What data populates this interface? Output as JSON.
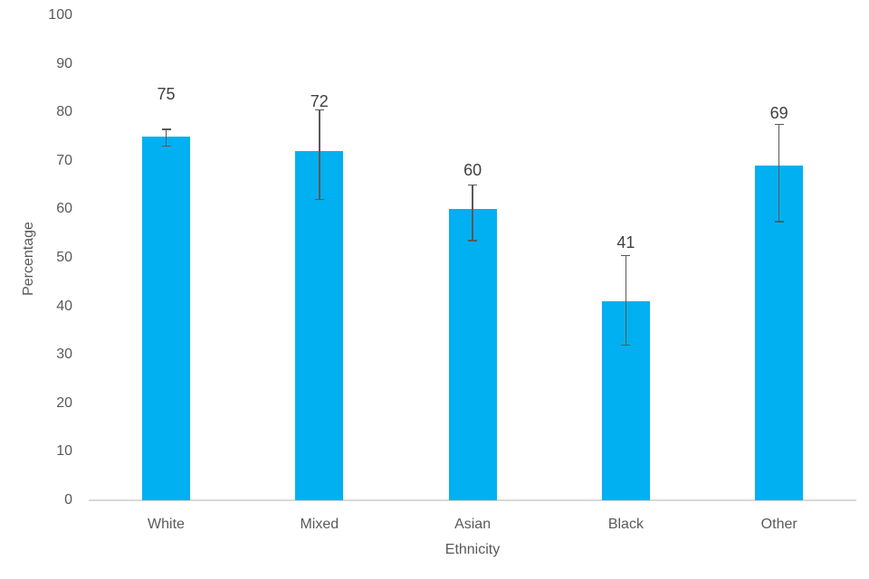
{
  "chart_data": {
    "type": "bar",
    "title": "",
    "xlabel": "Ethnicity",
    "ylabel": "Percentage",
    "categories": [
      "White",
      "Mixed",
      "Asian",
      "Black",
      "Other"
    ],
    "values": [
      75,
      72,
      60,
      41,
      69
    ],
    "data_labels": [
      "75",
      "72",
      "60",
      "41",
      "69"
    ],
    "error_high": [
      76.5,
      80.5,
      65,
      50.5,
      77.5
    ],
    "error_low": [
      73,
      62,
      53.5,
      32,
      57.5
    ],
    "ylim": [
      0,
      100
    ],
    "yticks": [
      0,
      10,
      20,
      30,
      40,
      50,
      60,
      70,
      80,
      90,
      100
    ],
    "grid": "off",
    "legend": "none",
    "colors": {
      "bar": "#00B0F0",
      "error_bar": "#595959",
      "axis_line": "#D9D9D9",
      "axis_text": "#595959",
      "data_label": "#404040"
    }
  }
}
